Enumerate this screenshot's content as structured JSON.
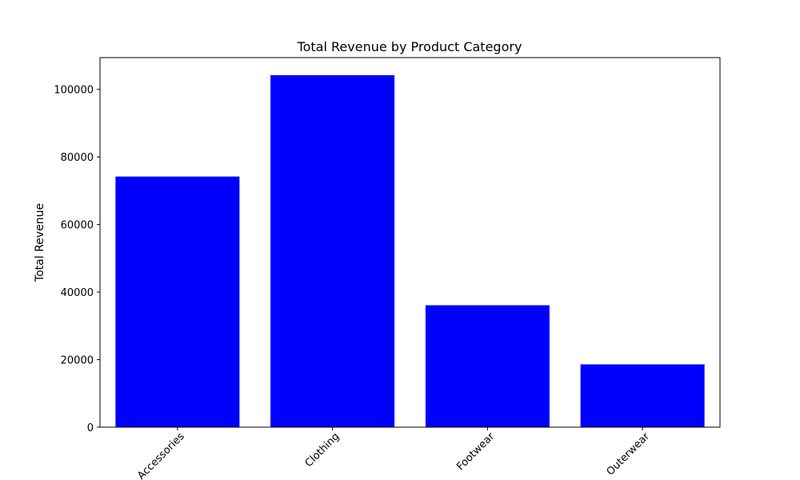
{
  "chart_data": {
    "type": "bar",
    "title": "Total Revenue by Product Category",
    "xlabel": "",
    "ylabel": "Total Revenue",
    "categories": [
      "Accessories",
      "Clothing",
      "Footwear",
      "Outerwear"
    ],
    "values": [
      74200,
      104200,
      36100,
      18600
    ],
    "ylim": [
      0,
      109410
    ],
    "yticks": [
      0,
      20000,
      40000,
      60000,
      80000,
      100000
    ],
    "bar_color": "#0000ff",
    "grid": false,
    "legend": false
  }
}
